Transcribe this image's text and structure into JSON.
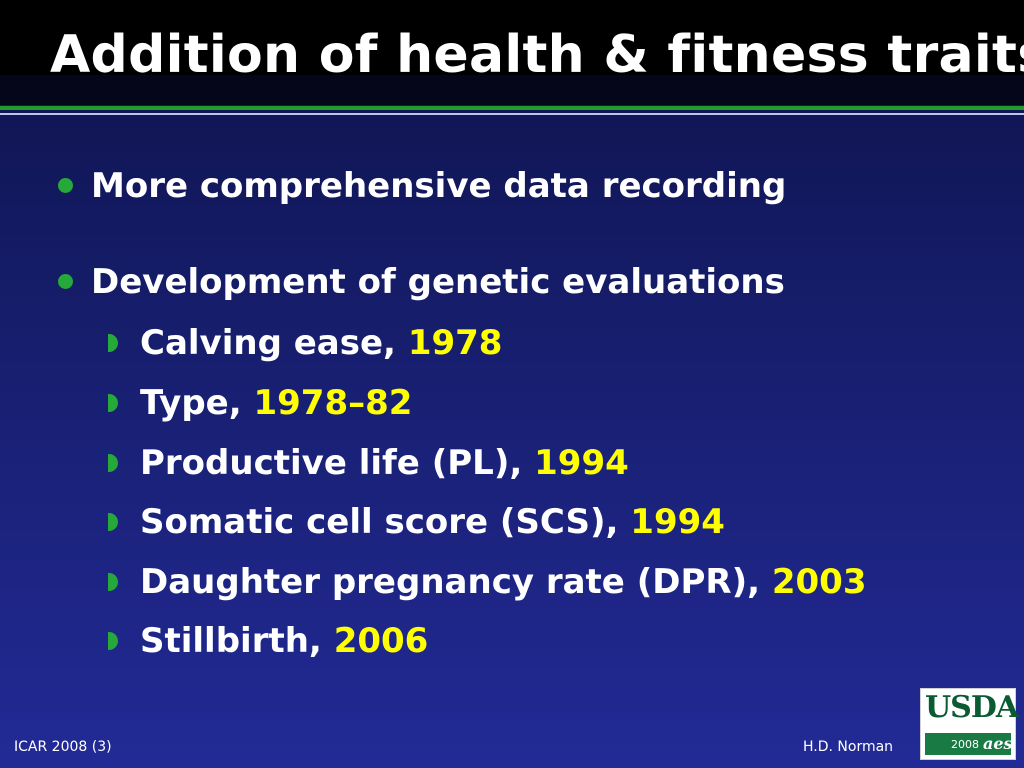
{
  "slide": {
    "title": "Addition of health & fitness traits",
    "bullets": [
      {
        "text": "More comprehensive data recording"
      },
      {
        "text": "Development of genetic evaluations"
      }
    ],
    "sub_bullets": [
      {
        "text": "Calving ease, ",
        "year": "1978"
      },
      {
        "text": "Type, ",
        "year": "1978–82"
      },
      {
        "text": "Productive life (PL), ",
        "year": "1994"
      },
      {
        "text": "Somatic cell score (SCS), ",
        "year": "1994"
      },
      {
        "text": "Daughter pregnancy rate (DPR), ",
        "year": "2003"
      },
      {
        "text": "Stillbirth, ",
        "year": "2006"
      }
    ]
  },
  "footer": {
    "left": "ICAR 2008 (3)",
    "right": "H.D. Norman"
  },
  "logo": {
    "name": "USDA",
    "year": "2008",
    "mark": "aes"
  },
  "colors": {
    "background_top": "#0e124a",
    "background_bottom": "#222a96",
    "bullet_green": "#26a83a",
    "year_yellow": "#ffff00"
  }
}
